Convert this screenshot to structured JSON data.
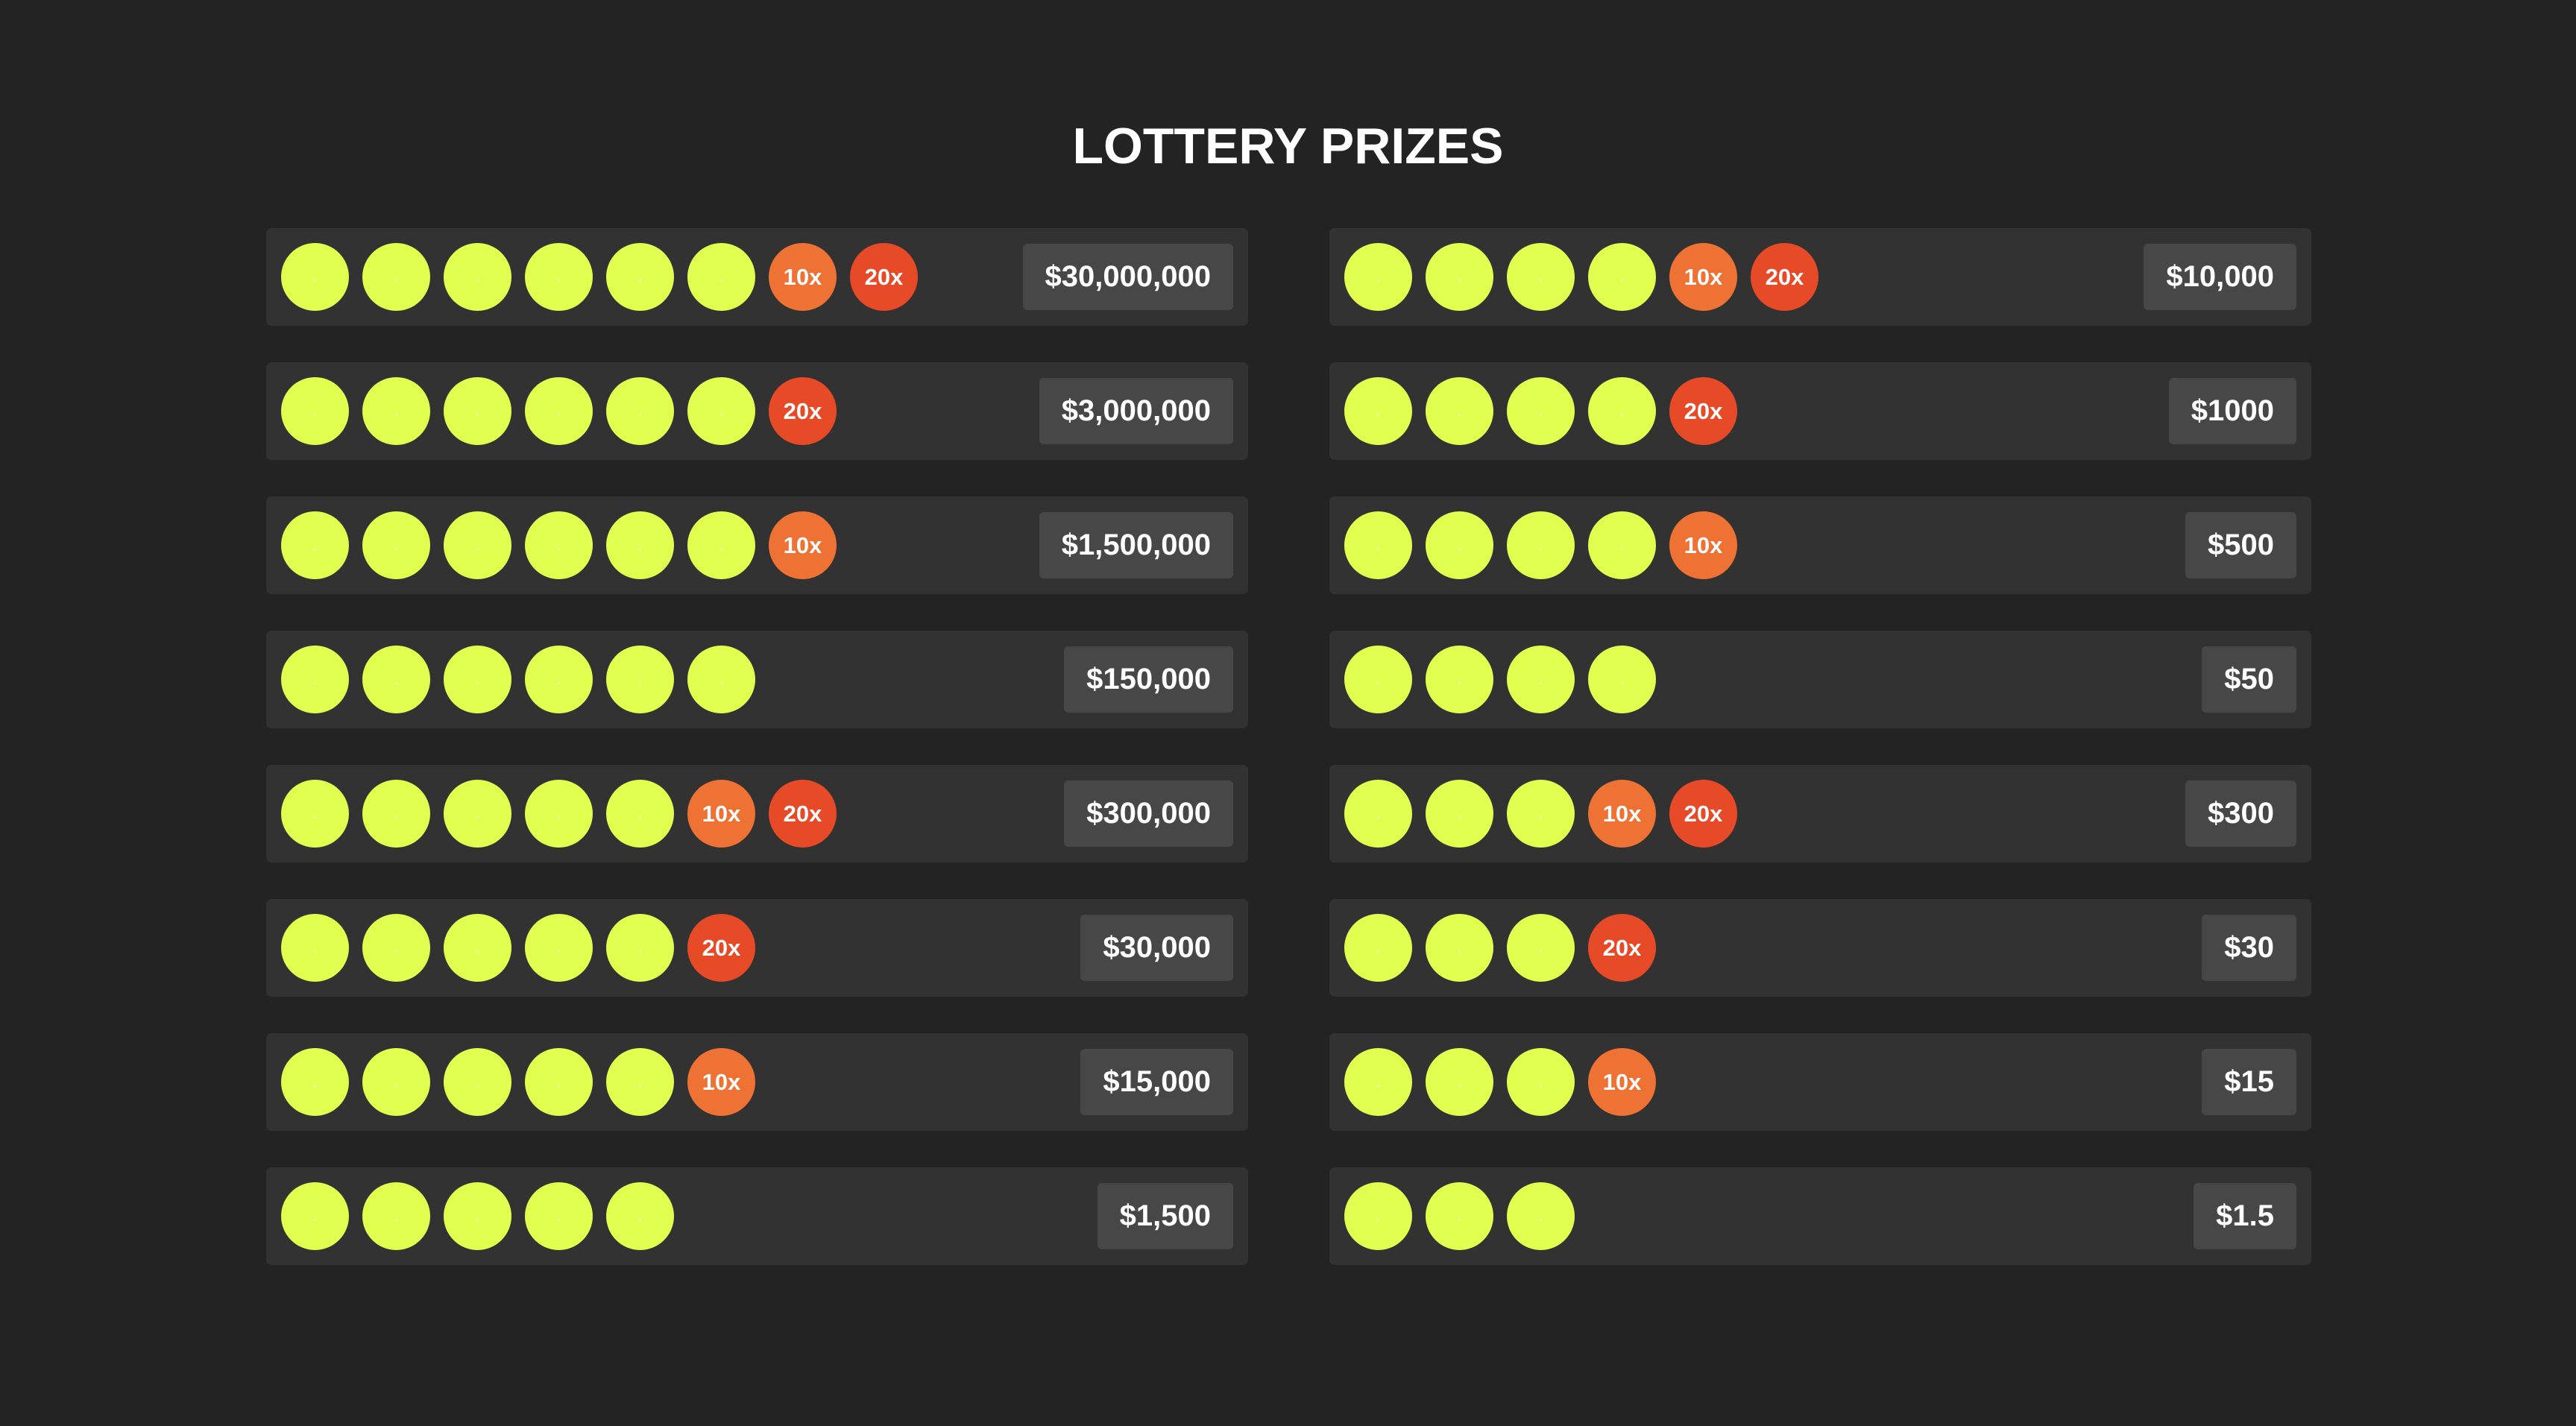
{
  "title": "LOTTERY PRIZES",
  "colors": {
    "background": "#232323",
    "row": "#323232",
    "prize_box": "#474747",
    "ball": "#e0ff4f",
    "multiplier_10x": "#ed7233",
    "multiplier_20x": "#e74a26"
  },
  "left_rows": [
    {
      "balls": 6,
      "multipliers": [
        "10x",
        "20x"
      ],
      "prize": "$30,000,000"
    },
    {
      "balls": 6,
      "multipliers": [
        "20x"
      ],
      "prize": "$3,000,000"
    },
    {
      "balls": 6,
      "multipliers": [
        "10x"
      ],
      "prize": "$1,500,000"
    },
    {
      "balls": 6,
      "multipliers": [],
      "prize": "$150,000"
    },
    {
      "balls": 5,
      "multipliers": [
        "10x",
        "20x"
      ],
      "prize": "$300,000"
    },
    {
      "balls": 5,
      "multipliers": [
        "20x"
      ],
      "prize": "$30,000"
    },
    {
      "balls": 5,
      "multipliers": [
        "10x"
      ],
      "prize": "$15,000"
    },
    {
      "balls": 5,
      "multipliers": [],
      "prize": "$1,500"
    }
  ],
  "right_rows": [
    {
      "balls": 4,
      "multipliers": [
        "10x",
        "20x"
      ],
      "prize": "$10,000"
    },
    {
      "balls": 4,
      "multipliers": [
        "20x"
      ],
      "prize": "$1000"
    },
    {
      "balls": 4,
      "multipliers": [
        "10x"
      ],
      "prize": "$500"
    },
    {
      "balls": 4,
      "multipliers": [],
      "prize": "$50"
    },
    {
      "balls": 3,
      "multipliers": [
        "10x",
        "20x"
      ],
      "prize": "$300"
    },
    {
      "balls": 3,
      "multipliers": [
        "20x"
      ],
      "prize": "$30"
    },
    {
      "balls": 3,
      "multipliers": [
        "10x"
      ],
      "prize": "$15"
    },
    {
      "balls": 3,
      "multipliers": [],
      "prize": "$1.5"
    }
  ]
}
